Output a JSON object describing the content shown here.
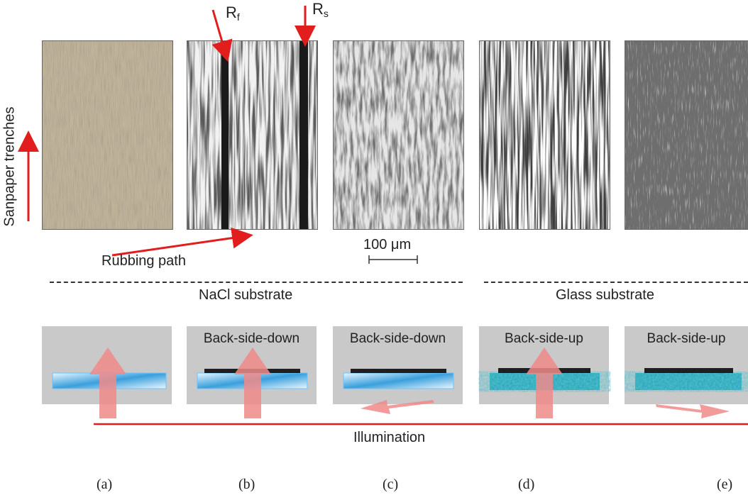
{
  "figure": {
    "r_f_letter": "R",
    "r_f_sub": "f",
    "r_s_letter": "R",
    "r_s_sub": "s",
    "trenches_label": "Sanpaper trenches",
    "rubbing_label": "Rubbing path",
    "scale_label": "100 μm",
    "nacl_label": "NaCl  substrate",
    "glass_label": "Glass  substrate",
    "panels": [
      {
        "label": ""
      },
      {
        "label": "Back-side-down"
      },
      {
        "label": "Back-side-down"
      },
      {
        "label": "Back-side-up"
      },
      {
        "label": "Back-side-up"
      }
    ],
    "illumination_label": "Illumination",
    "captions": [
      "(a)",
      "(b)",
      "(c)",
      "(d)",
      "(e)"
    ]
  },
  "colors": {
    "arrow_red": "#e11d1d",
    "illum_arrow": "#f08a8a",
    "panel_bg": "#c9c9c9",
    "crystal_blue": "#3a9fdc"
  }
}
